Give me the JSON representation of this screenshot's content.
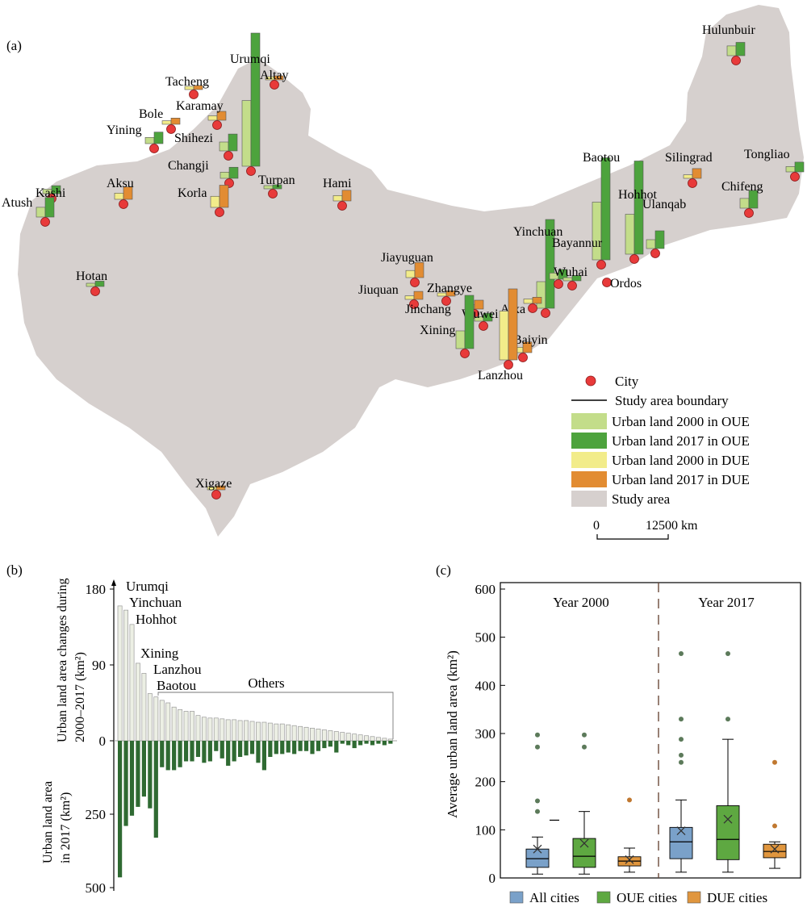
{
  "panel_a": {
    "label": "(a)",
    "cities": [
      {
        "name": "Hulunbuir",
        "type": "OUE",
        "v2000": 22,
        "v2017": 30
      },
      {
        "name": "Urumqi",
        "type": "OUE",
        "v2000": 148,
        "v2017": 300
      },
      {
        "name": "Altay",
        "type": "DUE",
        "v2000": 5,
        "v2017": 7
      },
      {
        "name": "Tacheng",
        "type": "DUE",
        "v2000": 5,
        "v2017": 8
      },
      {
        "name": "Karamay",
        "type": "DUE",
        "v2000": 10,
        "v2017": 20
      },
      {
        "name": "Bole",
        "type": "DUE",
        "v2000": 8,
        "v2017": 14
      },
      {
        "name": "Yining",
        "type": "OUE",
        "v2000": 14,
        "v2017": 26
      },
      {
        "name": "Shihezi",
        "type": "OUE",
        "v2000": 20,
        "v2017": 38
      },
      {
        "name": "Changji",
        "type": "OUE",
        "v2000": 14,
        "v2017": 25
      },
      {
        "name": "Turpan",
        "type": "OUE",
        "v2000": 3,
        "v2017": 6
      },
      {
        "name": "Hami",
        "type": "DUE",
        "v2000": 12,
        "v2017": 24
      },
      {
        "name": "Aksu",
        "type": "DUE",
        "v2000": 14,
        "v2017": 28
      },
      {
        "name": "Kashi",
        "type": "OUE",
        "v2000": 10,
        "v2017": 18
      },
      {
        "name": "Atush",
        "type": "OUE",
        "v2000": 22,
        "v2017": 44
      },
      {
        "name": "Korla",
        "type": "DUE",
        "v2000": 25,
        "v2017": 50
      },
      {
        "name": "Hotan",
        "type": "OUE",
        "v2000": 6,
        "v2017": 12
      },
      {
        "name": "Silingrad",
        "type": "DUE",
        "v2000": 8,
        "v2017": 22
      },
      {
        "name": "Tongliao",
        "type": "OUE",
        "v2000": 12,
        "v2017": 22
      },
      {
        "name": "Chifeng",
        "type": "OUE",
        "v2000": 22,
        "v2017": 40
      },
      {
        "name": "Baotou",
        "type": "OUE",
        "v2000": 130,
        "v2017": 230
      },
      {
        "name": "Hohhot",
        "type": "OUE",
        "v2000": 90,
        "v2017": 210
      },
      {
        "name": "Ulanqab",
        "type": "OUE",
        "v2000": 20,
        "v2017": 40
      },
      {
        "name": "Yinchuan",
        "type": "OUE",
        "v2000": 60,
        "v2017": 200
      },
      {
        "name": "Bayannur",
        "type": "OUE",
        "v2000": 14,
        "v2017": 22
      },
      {
        "name": "Wuhai",
        "type": "OUE",
        "v2000": 2,
        "v2017": 12
      },
      {
        "name": "Ordos",
        "type": "OUE",
        "v2000": 0,
        "v2017": 0
      },
      {
        "name": "Jiayuguan",
        "type": "DUE",
        "v2000": 16,
        "v2017": 34
      },
      {
        "name": "Jiuquan",
        "type": "DUE",
        "v2000": 8,
        "v2017": 18
      },
      {
        "name": "Zhangye",
        "type": "DUE",
        "v2000": 6,
        "v2017": 12
      },
      {
        "name": "Alxa",
        "type": "DUE",
        "v2000": 10,
        "v2017": 14
      },
      {
        "name": "Jinchang",
        "type": "DUE",
        "v2000": 10,
        "v2017": 20
      },
      {
        "name": "Wuwei",
        "type": "OUE",
        "v2000": 10,
        "v2017": 18
      },
      {
        "name": "Xining",
        "type": "OUE",
        "v2000": 40,
        "v2017": 120
      },
      {
        "name": "Baiyin",
        "type": "DUE",
        "v2000": 12,
        "v2017": 24
      },
      {
        "name": "Lanzhou",
        "type": "DUE",
        "v2000": 110,
        "v2017": 160
      },
      {
        "name": "Xigaze",
        "type": "DUE",
        "v2000": 4,
        "v2017": 8
      }
    ],
    "legend": [
      {
        "label": "City",
        "kind": "dot",
        "color": "#e83a3a"
      },
      {
        "label": "Study area boundary",
        "kind": "line",
        "color": "#000000"
      },
      {
        "label": "Urban land 2000 in OUE",
        "kind": "box",
        "color": "#c3dd8a"
      },
      {
        "label": "Urban land 2017 in OUE",
        "kind": "box",
        "color": "#4da33d"
      },
      {
        "label": "Urban land 2000 in DUE",
        "kind": "box",
        "color": "#f2ec8a"
      },
      {
        "label": "Urban land 2017 in DUE",
        "kind": "box",
        "color": "#e28c32"
      },
      {
        "label": "Study area",
        "kind": "box",
        "color": "#d6d0ce"
      }
    ],
    "scale": {
      "start": "0",
      "end": "12500 km"
    }
  },
  "panel_b": {
    "label": "(b)",
    "ylabel_top": "Urban land area changes during 2000–2017 (km²)",
    "ylabel_bottom": "Urban land area in 2017 (km²)",
    "top_ticks": [
      "180",
      "90",
      "0"
    ],
    "bottom_ticks": [
      "250",
      "500"
    ],
    "named": [
      "Urumqi",
      "Yinchuan",
      "Hohhot",
      "Xining",
      "Lanzhou",
      "Baotou"
    ],
    "others_label": "Others",
    "changes": [
      160,
      155,
      138,
      92,
      80,
      56,
      52,
      48,
      45,
      40,
      37,
      35,
      35,
      30,
      28,
      27,
      27,
      26,
      25,
      25,
      24,
      24,
      23,
      22,
      22,
      21,
      20,
      20,
      19,
      18,
      17,
      16,
      15,
      14,
      13,
      12,
      11,
      10,
      9,
      8,
      7,
      6,
      5,
      4,
      3,
      2
    ],
    "area_2017": [
      465,
      290,
      255,
      225,
      190,
      230,
      330,
      90,
      100,
      100,
      90,
      70,
      70,
      55,
      75,
      70,
      35,
      60,
      85,
      70,
      55,
      50,
      45,
      75,
      100,
      55,
      45,
      45,
      40,
      45,
      35,
      35,
      45,
      35,
      25,
      20,
      40,
      10,
      15,
      25,
      15,
      10,
      15,
      10,
      15,
      10
    ]
  },
  "panel_c": {
    "label": "(c)",
    "ylabel": "Average urban land area (km²)",
    "ylim": [
      0,
      600
    ],
    "yticks": [
      "0",
      "100",
      "200",
      "300",
      "400",
      "500",
      "600"
    ],
    "year_labels": [
      "Year 2000",
      "Year 2017"
    ],
    "legend": [
      {
        "label": "All cities",
        "color": "#7aa1c9"
      },
      {
        "label": "OUE cities",
        "color": "#5ea841"
      },
      {
        "label": "DUE cities",
        "color": "#e0963e"
      }
    ],
    "boxes": [
      {
        "group": "All cities",
        "year": "2000",
        "min": 8,
        "q1": 22,
        "median": 40,
        "q3": 60,
        "max": 85,
        "mean": 60,
        "outliers": [
          297,
          272,
          160,
          138
        ]
      },
      {
        "group": "OUE cities",
        "year": "2000",
        "min": 8,
        "q1": 22,
        "median": 45,
        "q3": 82,
        "max": 138,
        "mean": 72,
        "outliers": [
          297,
          272
        ]
      },
      {
        "group": "DUE cities",
        "year": "2000",
        "min": 12,
        "q1": 25,
        "median": 35,
        "q3": 44,
        "max": 62,
        "mean": 38,
        "outliers": [
          162
        ]
      },
      {
        "group": "All cities",
        "year": "2017",
        "min": 12,
        "q1": 40,
        "median": 75,
        "q3": 105,
        "max": 162,
        "mean": 98,
        "outliers": [
          466,
          330,
          288,
          255,
          240
        ]
      },
      {
        "group": "OUE cities",
        "year": "2017",
        "min": 12,
        "q1": 38,
        "median": 80,
        "q3": 150,
        "max": 288,
        "mean": 122,
        "outliers": [
          466,
          330
        ]
      },
      {
        "group": "DUE cities",
        "year": "2017",
        "min": 20,
        "q1": 42,
        "median": 55,
        "q3": 70,
        "max": 75,
        "mean": 60,
        "outliers": [
          240,
          108
        ]
      }
    ]
  }
}
